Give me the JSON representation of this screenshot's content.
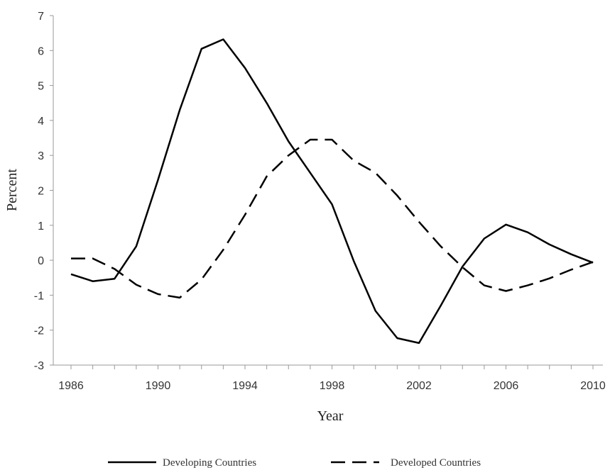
{
  "chart_data": {
    "type": "line",
    "xlabel": "Year",
    "ylabel": "Percent",
    "xlim": [
      1986,
      2010
    ],
    "ylim": [
      -3,
      7
    ],
    "x_ticks": [
      "1986",
      "1990",
      "1994",
      "1998",
      "2002",
      "2006",
      "2010"
    ],
    "y_ticks": [
      "-3",
      "-2",
      "-1",
      "0",
      "1",
      "2",
      "3",
      "4",
      "5",
      "6",
      "7"
    ],
    "grid": false,
    "legend_position": "bottom",
    "x": [
      1986,
      1987,
      1988,
      1989,
      1990,
      1991,
      1992,
      1993,
      1994,
      1995,
      1996,
      1997,
      1998,
      1999,
      2000,
      2001,
      2002,
      2003,
      2004,
      2005,
      2006,
      2007,
      2008,
      2009,
      2010
    ],
    "series": [
      {
        "name": "Developing Countries",
        "style": "solid",
        "color": "#000000",
        "values": [
          -0.4,
          -0.6,
          -0.53,
          0.4,
          2.3,
          4.3,
          6.05,
          6.32,
          5.5,
          4.5,
          3.4,
          2.5,
          1.6,
          -0.02,
          -1.45,
          -2.23,
          -2.37,
          -1.3,
          -0.18,
          0.62,
          1.02,
          0.8,
          0.45,
          0.17,
          -0.07
        ]
      },
      {
        "name": "Developed Countries",
        "style": "dashed",
        "color": "#000000",
        "values": [
          0.05,
          0.05,
          -0.25,
          -0.7,
          -0.97,
          -1.07,
          -0.55,
          0.3,
          1.3,
          2.4,
          3.0,
          3.45,
          3.45,
          2.85,
          2.5,
          1.85,
          1.1,
          0.4,
          -0.2,
          -0.72,
          -0.88,
          -0.72,
          -0.52,
          -0.27,
          -0.05
        ]
      }
    ]
  }
}
